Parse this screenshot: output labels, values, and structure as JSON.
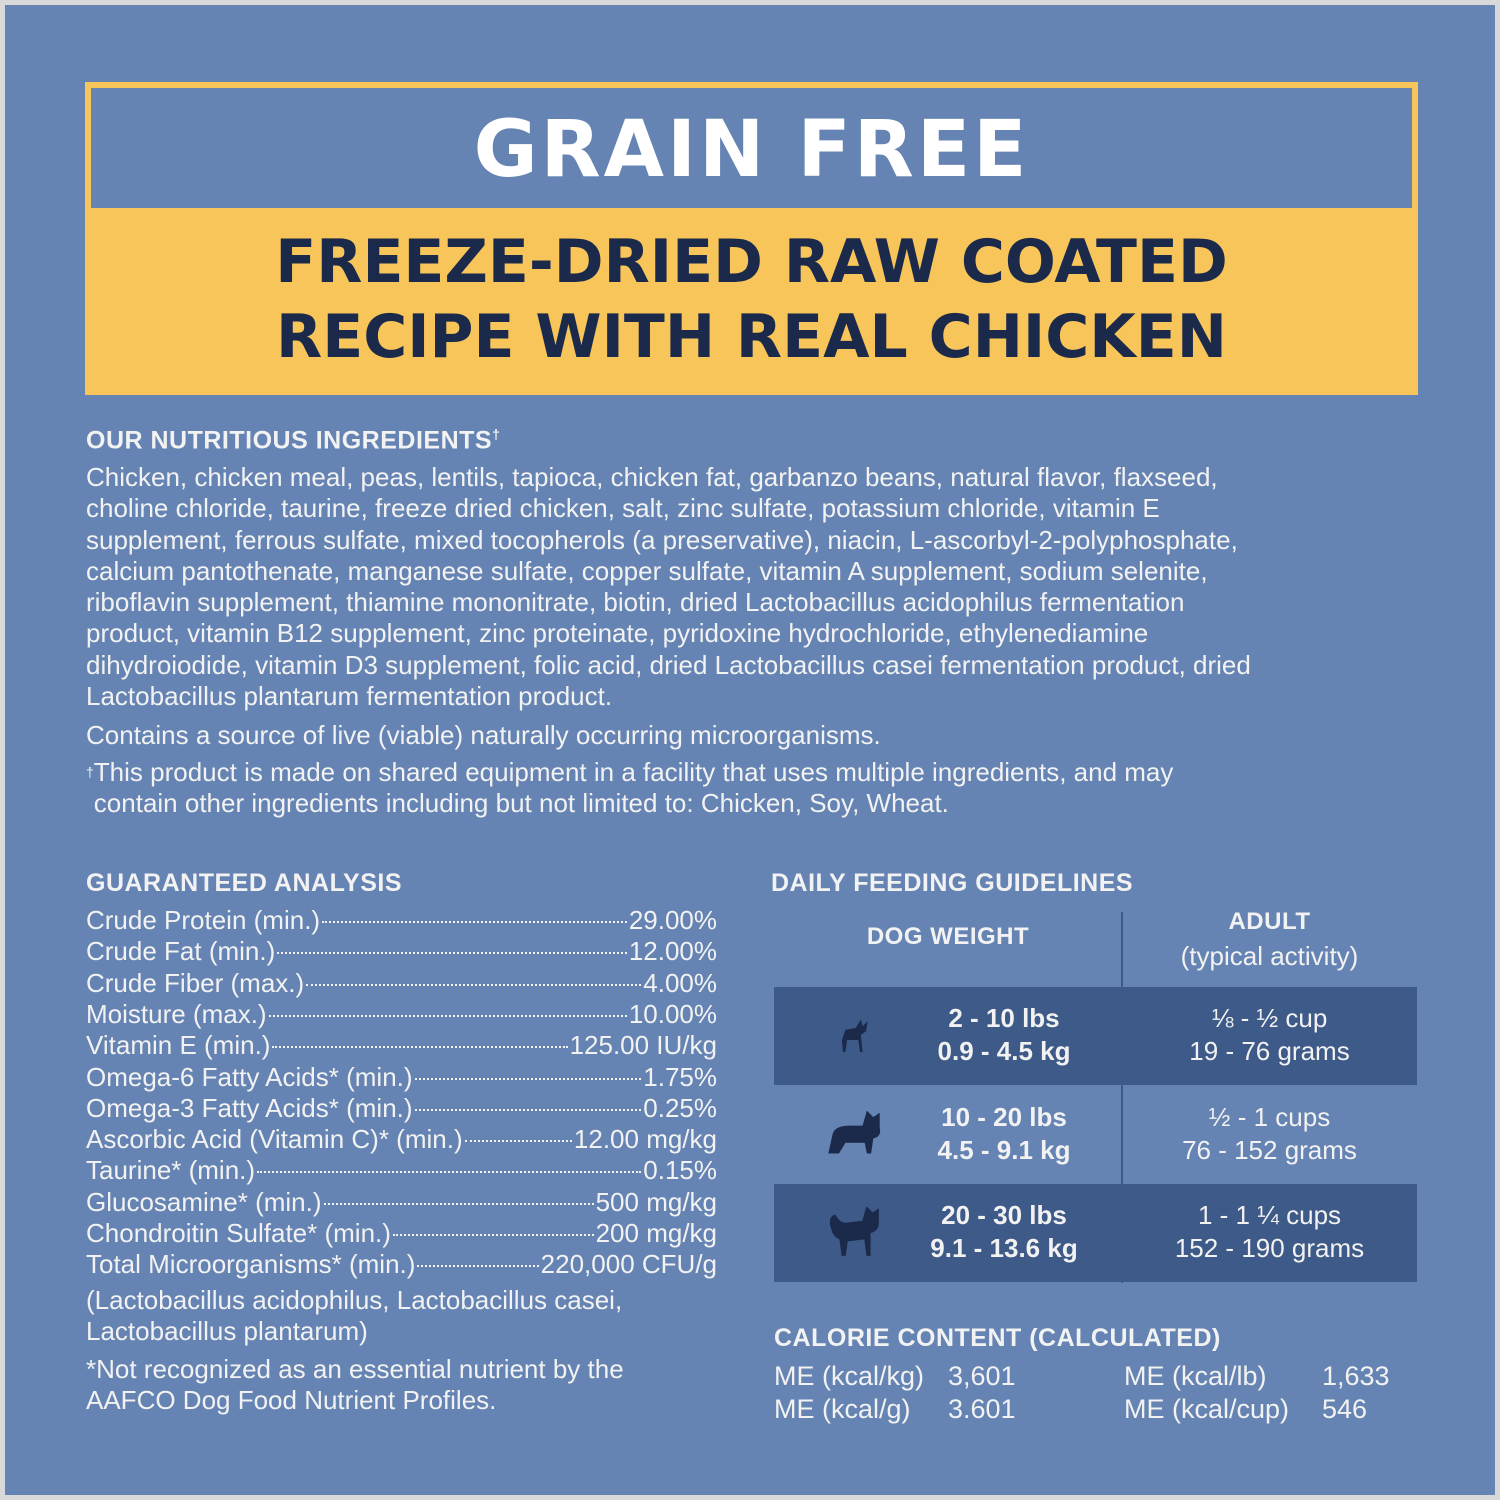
{
  "header": {
    "badge": "GRAIN FREE",
    "title_lines": [
      "FREEZE-DRIED RAW COATED",
      "RECIPE WITH REAL CHICKEN"
    ]
  },
  "ingredients": {
    "heading": "OUR NUTRITIOUS INGREDIENTS",
    "heading_mark": "†",
    "lines": [
      "Chicken, chicken meal, peas, lentils, tapioca, chicken fat, garbanzo beans, natural flavor, flaxseed,",
      "choline chloride, taurine, freeze dried chicken, salt, zinc sulfate, potassium chloride, vitamin E",
      "supplement, ferrous sulfate, mixed tocopherols (a preservative), niacin, L-ascorbyl-2-polyphosphate,",
      "calcium pantothenate, manganese sulfate, copper sulfate, vitamin A supplement, sodium selenite,",
      "riboflavin supplement, thiamine mononitrate, biotin, dried Lactobacillus acidophilus fermentation",
      "product, vitamin B12 supplement, zinc proteinate, pyridoxine hydrochloride, ethylenediamine",
      "dihydroiodide, vitamin D3 supplement, folic acid, dried Lactobacillus casei fermentation product, dried",
      "Lactobacillus plantarum fermentation product."
    ],
    "note": "Contains a source of live (viable) naturally occurring microorganisms.",
    "disclaimer_mark": "†",
    "disclaimer_lines": [
      "This product is made on shared equipment in a facility that uses multiple ingredients, and may",
      "contain other ingredients including but not limited to: Chicken, Soy, Wheat."
    ]
  },
  "analysis": {
    "heading": "GUARANTEED ANALYSIS",
    "rows": [
      [
        "Crude Protein (min.)",
        "29.00%"
      ],
      [
        "Crude Fat (min.)",
        "12.00%"
      ],
      [
        "Crude Fiber (max.)",
        "4.00%"
      ],
      [
        "Moisture (max.)",
        "10.00%"
      ],
      [
        "Vitamin E (min.)",
        "125.00 IU/kg"
      ],
      [
        "Omega-6 Fatty Acids* (min.)",
        "1.75%"
      ],
      [
        "Omega-3 Fatty Acids* (min.)",
        "0.25%"
      ],
      [
        "Ascorbic Acid (Vitamin C)* (min.)",
        "12.00 mg/kg"
      ],
      [
        "Taurine* (min.)",
        "0.15%"
      ],
      [
        "Glucosamine* (min.)",
        "500 mg/kg"
      ],
      [
        "Chondroitin Sulfate* (min.)",
        "200 mg/kg"
      ],
      [
        "Total Microorganisms* (min.)",
        "220,000 CFU/g"
      ]
    ],
    "strain_lines": [
      "(Lactobacillus acidophilus, Lactobacillus casei,",
      "Lactobacillus plantarum)"
    ],
    "note_lines": [
      "*Not recognized as an essential nutrient by the",
      "AAFCO Dog Food Nutrient Profiles."
    ]
  },
  "feeding": {
    "heading": "DAILY FEEDING GUIDELINES",
    "weight_header": "DOG WEIGHT",
    "adult_header": "ADULT",
    "adult_subheader": "(typical activity)",
    "rows": [
      {
        "lbs": "2 - 10 lbs",
        "kg": "0.9 - 4.5 kg",
        "cups": "⅛ - ½ cup",
        "grams": "19 - 76 grams"
      },
      {
        "lbs": "10 - 20 lbs",
        "kg": "4.5 - 9.1 kg",
        "cups": "½ - 1 cups",
        "grams": "76 - 152 grams"
      },
      {
        "lbs": "20 - 30 lbs",
        "kg": "9.1 - 13.6 kg",
        "cups": "1 - 1 ¼ cups",
        "grams": "152 - 190 grams"
      }
    ]
  },
  "calories": {
    "heading": "CALORIE CONTENT (CALCULATED)",
    "items": [
      [
        "ME (kcal/kg)",
        "3,601"
      ],
      [
        "ME (kcal/g)",
        "3.601"
      ],
      [
        "ME (kcal/lb)",
        "1,633"
      ],
      [
        "ME (kcal/cup)",
        "546"
      ]
    ]
  }
}
